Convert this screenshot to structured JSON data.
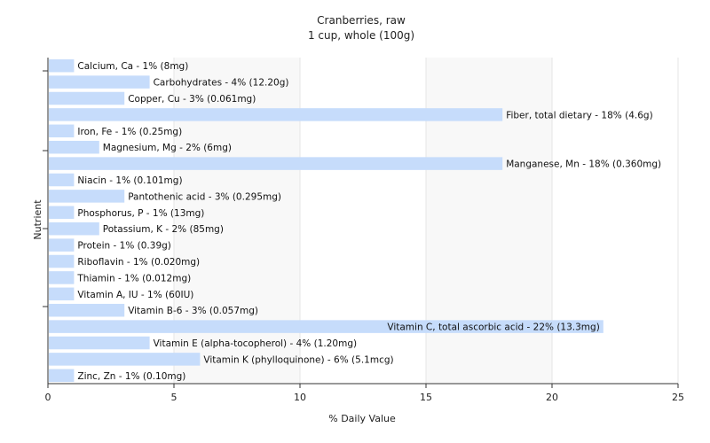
{
  "chart_data": {
    "type": "bar",
    "orientation": "horizontal",
    "title": "Cranberries, raw",
    "subtitle": "1 cup, whole (100g)",
    "xlabel": "% Daily Value",
    "ylabel": "Nutrient",
    "xlim": [
      0,
      25
    ],
    "xticks": [
      "0",
      "5",
      "10",
      "15",
      "20",
      "25"
    ],
    "grid": "vertical",
    "bar_color": "#c6dcfb",
    "categories": [
      "Calcium, Ca",
      "Carbohydrates",
      "Copper, Cu",
      "Fiber, total dietary",
      "Iron, Fe",
      "Magnesium, Mg",
      "Manganese, Mn",
      "Niacin",
      "Pantothenic acid",
      "Phosphorus, P",
      "Potassium, K",
      "Protein",
      "Riboflavin",
      "Thiamin",
      "Vitamin A, IU",
      "Vitamin B-6",
      "Vitamin C, total ascorbic acid",
      "Vitamin E (alpha-tocopherol)",
      "Vitamin K (phylloquinone)",
      "Zinc, Zn"
    ],
    "values": [
      1,
      4,
      3,
      18,
      1,
      2,
      18,
      1,
      3,
      1,
      2,
      1,
      1,
      1,
      1,
      3,
      22,
      4,
      6,
      1
    ],
    "labels": [
      "Calcium, Ca - 1% (8mg)",
      "Carbohydrates - 4% (12.20g)",
      "Copper, Cu - 3% (0.061mg)",
      "Fiber, total dietary - 18% (4.6g)",
      "Iron, Fe - 1% (0.25mg)",
      "Magnesium, Mg - 2% (6mg)",
      "Manganese, Mn - 18% (0.360mg)",
      "Niacin - 1% (0.101mg)",
      "Pantothenic acid - 3% (0.295mg)",
      "Phosphorus, P - 1% (13mg)",
      "Potassium, K - 2% (85mg)",
      "Protein - 1% (0.39g)",
      "Riboflavin - 1% (0.020mg)",
      "Thiamin - 1% (0.012mg)",
      "Vitamin A, IU - 1% (60IU)",
      "Vitamin B-6 - 3% (0.057mg)",
      "Vitamin C, total ascorbic acid - 22% (13.3mg)",
      "Vitamin E (alpha-tocopherol) - 4% (1.20mg)",
      "Vitamin K (phylloquinone) - 6% (5.1mcg)",
      "Zinc, Zn - 1% (0.10mg)"
    ]
  }
}
